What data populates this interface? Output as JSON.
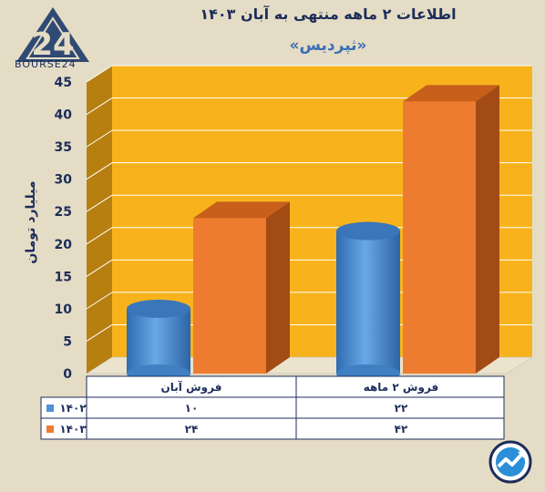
{
  "title": "اطلاعات ۲ ماهه منتهی به آبان ۱۴۰۳",
  "subtitle": "«ثپردیس»",
  "logo_text": "BOURSE24",
  "colors": {
    "series_1402": "#4f93d8",
    "series_1403": "#ee7c30",
    "wall": "#f8b31c",
    "background": "#e5dcc5"
  },
  "chart_data": {
    "type": "bar",
    "categories": [
      "فروش آبان",
      "فروش ۲ ماهه"
    ],
    "series": [
      {
        "name": "۱۴۰۲",
        "values": [
          10,
          22
        ],
        "shape": "cylinder"
      },
      {
        "name": "۱۴۰۳",
        "values": [
          24,
          42
        ],
        "shape": "box"
      }
    ],
    "value_labels": [
      [
        "۱۰",
        "۲۲"
      ],
      [
        "۲۴",
        "۴۲"
      ]
    ],
    "ylabel": "میلیارد تومان",
    "ylim": [
      0,
      45
    ],
    "yticks": [
      "0",
      "5",
      "10",
      "15",
      "20",
      "25",
      "30",
      "35",
      "40",
      "45"
    ],
    "grid": true,
    "legend": "data-table"
  }
}
